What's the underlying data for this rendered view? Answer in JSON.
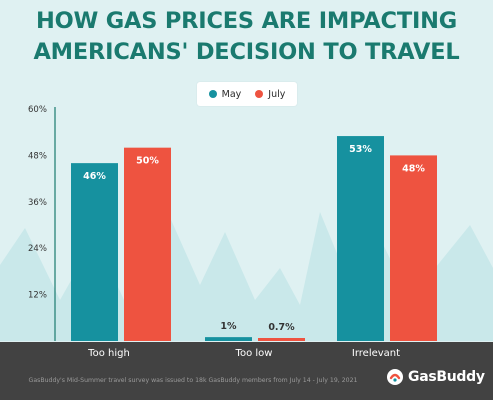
{
  "title_line1": "HOW GAS PRICES ARE IMPACTING",
  "title_line2": "AMERICANS' DECISION TO TRAVEL",
  "colors": {
    "may": "#16919f",
    "july": "#ee5340",
    "title": "#1a7a6f",
    "axis": "#1a7a6f",
    "footer": "#424242",
    "mountains": "#c9e8ea"
  },
  "legend": [
    {
      "label": "May",
      "color": "#16919f"
    },
    {
      "label": "July",
      "color": "#ee5340"
    }
  ],
  "chart_data": {
    "type": "bar",
    "categories": [
      "Too high",
      "Too low",
      "Irrelevant"
    ],
    "series": [
      {
        "name": "May",
        "values": [
          46,
          1,
          53
        ],
        "labels": [
          "46%",
          "1%",
          "53%"
        ]
      },
      {
        "name": "July",
        "values": [
          50,
          0.7,
          48
        ],
        "labels": [
          "50%",
          "0.7%",
          "48%"
        ]
      }
    ],
    "ylim": [
      0,
      60
    ],
    "yticks": [
      12,
      24,
      36,
      48,
      60
    ],
    "ytick_labels": [
      "12%",
      "24%",
      "36%",
      "48%",
      "60%"
    ],
    "legend_position": "top-center",
    "grid": false
  },
  "footnote": "GasBuddy's Mid-Summer travel survey was issued to 18k GasBuddy members from July 14 - July 19, 2021",
  "brand": "GasBuddy",
  "brand_icon": "gasbuddy-logo-icon"
}
